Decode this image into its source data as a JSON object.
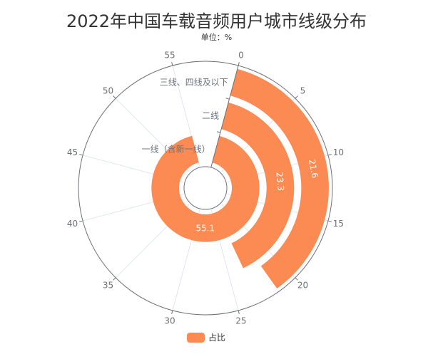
{
  "chart_data": {
    "type": "polar-bar",
    "title": "2022年中国车载音频用户城市线级分布",
    "subtitle": "单位：%",
    "categories": [
      "一线（含新一线）",
      "二线",
      "三线、四线及以下"
    ],
    "series": [
      {
        "name": "占比",
        "values": [
          55.1,
          23.3,
          21.6
        ]
      }
    ],
    "angle_axis": {
      "min": 0,
      "max": 60,
      "interval": 5,
      "ticks": [
        "0",
        "5",
        "10",
        "15",
        "20",
        "25",
        "30",
        "35",
        "40",
        "45",
        "50",
        "55"
      ]
    },
    "legend_position": "bottom",
    "color": "#FC8A53"
  }
}
